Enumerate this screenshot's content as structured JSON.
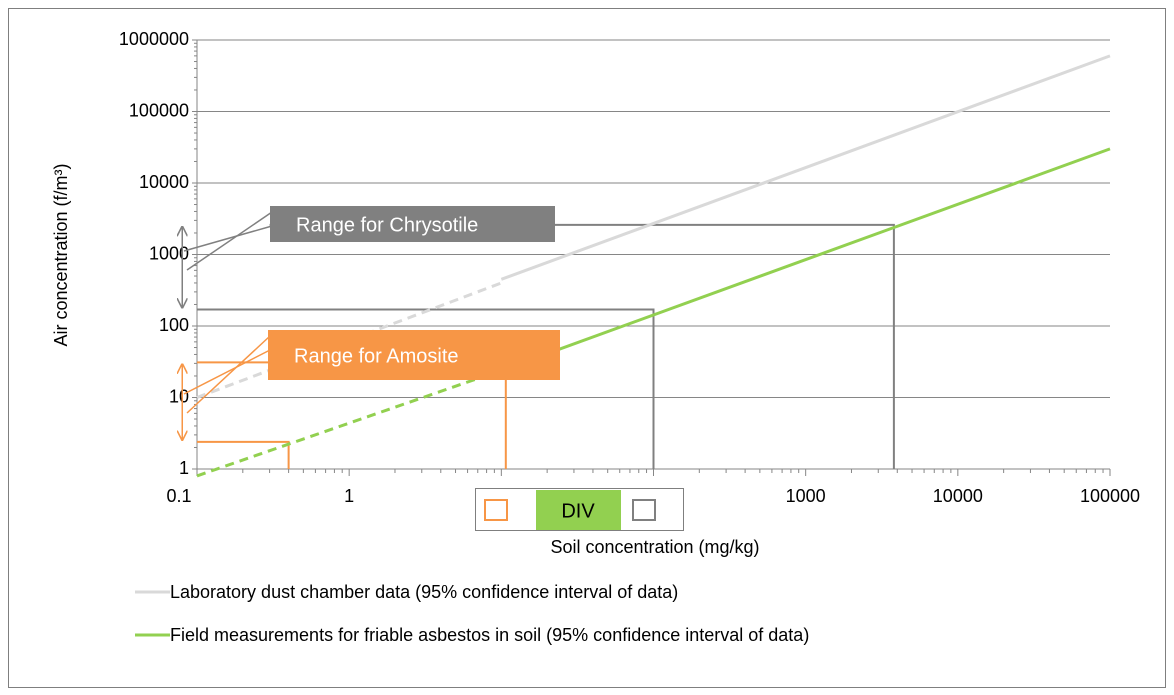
{
  "chart_data": {
    "type": "line",
    "x_label": "Soil concentration (mg/kg)",
    "y_label": "Air concentration (f/m³)",
    "xscale": "log",
    "yscale": "log",
    "xlim": [
      0.1,
      100000
    ],
    "ylim": [
      1,
      1000000
    ],
    "xticks": [
      0.1,
      1,
      10,
      100,
      1000,
      10000,
      100000
    ],
    "yticks": [
      1,
      10,
      100,
      1000,
      10000,
      100000,
      1000000
    ],
    "grid": true,
    "series": [
      {
        "name": "Laboratory dust chamber data (95% confidence interval of data)",
        "color": "#d9d9d9",
        "x": [
          10,
          100000
        ],
        "values": [
          450,
          600000
        ]
      },
      {
        "name": "Field measurements for friable asbestos in soil (95% confidence interval of data)",
        "color": "#92d050",
        "x": [
          10,
          100000
        ],
        "values": [
          24,
          30000
        ]
      }
    ],
    "extrapolations": [
      {
        "color": "#d9d9d9",
        "x": [
          0.1,
          10
        ],
        "values": [
          10,
          400
        ]
      },
      {
        "color": "#92d050",
        "x": [
          0.1,
          10
        ],
        "values": [
          0.8,
          24
        ]
      }
    ],
    "reference_lines": [
      {
        "color": "#808080",
        "x": [
          0.3,
          3800,
          3800
        ],
        "values": [
          2600,
          2600,
          1
        ]
      },
      {
        "color": "#808080",
        "x": [
          0.1,
          100,
          100
        ],
        "values": [
          170,
          170,
          1
        ]
      },
      {
        "color": "#f79646",
        "x": [
          0.1,
          10.7,
          10.7
        ],
        "values": [
          31,
          31,
          1
        ]
      },
      {
        "color": "#f79646",
        "x": [
          0.1,
          0.4,
          0.4
        ],
        "values": [
          2.4,
          2.4,
          1
        ]
      }
    ],
    "range_arrows": [
      {
        "color": "#808080",
        "x": 0.08,
        "values": [
          170,
          2600
        ]
      },
      {
        "color": "#f79646",
        "x": 0.08,
        "values": [
          2.4,
          31
        ]
      }
    ],
    "annotations": [
      {
        "text": "Range for Chrysotile",
        "color": "#808080"
      },
      {
        "text": "Range for Amosite",
        "color": "#f79646"
      }
    ],
    "overlay_label": "DIV",
    "legend": "bottom"
  }
}
